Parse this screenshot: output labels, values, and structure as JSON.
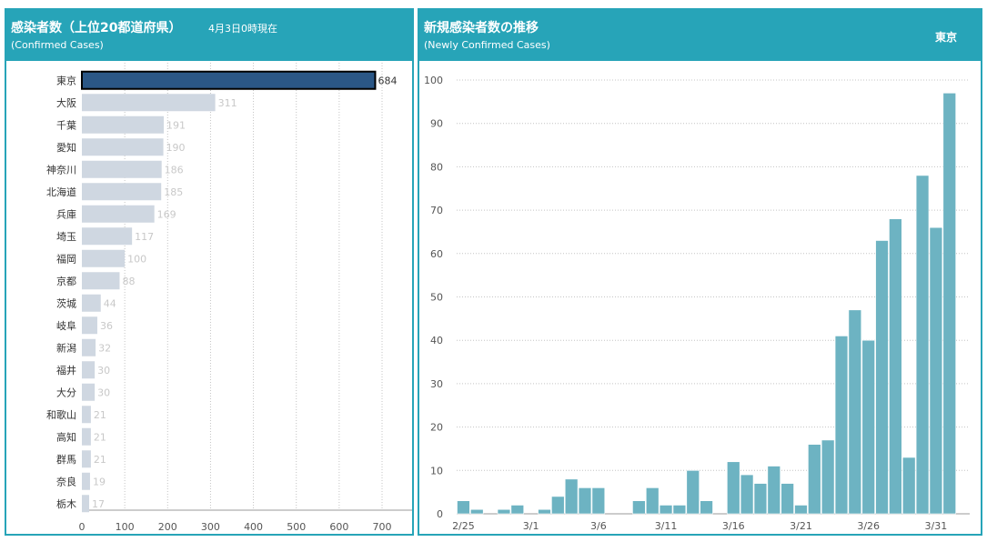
{
  "left_panel": {
    "title": "感染者数（上位20都道府県）",
    "subtitle": "(Confirmed Cases)",
    "date_note": "4月3日0時現在"
  },
  "right_panel": {
    "title": "新規感染者数の推移",
    "subtitle": "(Newly Confirmed Cases)",
    "prefecture": "東京"
  },
  "colors": {
    "header": "#27a4b8",
    "highlight_bar": "#2b5786",
    "bar": "#cfd7e1",
    "daily_bar": "#6db3c2"
  },
  "chart_data": [
    {
      "type": "bar",
      "orientation": "horizontal",
      "categories": [
        "東京",
        "大阪",
        "千葉",
        "愛知",
        "神奈川",
        "北海道",
        "兵庫",
        "埼玉",
        "福岡",
        "京都",
        "茨城",
        "岐阜",
        "新潟",
        "福井",
        "大分",
        "和歌山",
        "高知",
        "群馬",
        "奈良",
        "栃木"
      ],
      "values": [
        684,
        311,
        191,
        190,
        186,
        185,
        169,
        117,
        100,
        88,
        44,
        36,
        32,
        30,
        30,
        21,
        21,
        21,
        19,
        17
      ],
      "highlighted": "東京",
      "xticks": [
        0,
        100,
        200,
        300,
        400,
        500,
        600,
        700
      ],
      "xlim": [
        0,
        770
      ],
      "grid": "vertical dotted"
    },
    {
      "type": "bar",
      "x": [
        "2/25",
        "2/26",
        "2/27",
        "2/28",
        "2/29",
        "3/1",
        "3/2",
        "3/3",
        "3/4",
        "3/5",
        "3/6",
        "3/7",
        "3/8",
        "3/9",
        "3/10",
        "3/11",
        "3/12",
        "3/13",
        "3/14",
        "3/15",
        "3/16",
        "3/17",
        "3/18",
        "3/19",
        "3/20",
        "3/21",
        "3/22",
        "3/23",
        "3/24",
        "3/25",
        "3/26",
        "3/27",
        "3/28",
        "3/29",
        "3/30",
        "3/31",
        "4/1",
        "4/2"
      ],
      "values": [
        3,
        1,
        0,
        1,
        2,
        0,
        1,
        4,
        8,
        6,
        6,
        0,
        0,
        3,
        6,
        2,
        2,
        10,
        3,
        0,
        12,
        9,
        7,
        11,
        7,
        2,
        16,
        17,
        41,
        47,
        40,
        63,
        68,
        13,
        78,
        66,
        97,
        0
      ],
      "xticks": [
        "2/25",
        "3/1",
        "3/6",
        "3/11",
        "3/16",
        "3/21",
        "3/26",
        "3/31"
      ],
      "yticks": [
        0,
        10,
        20,
        30,
        40,
        50,
        60,
        70,
        80,
        90,
        100
      ],
      "ylim": [
        0,
        100
      ],
      "grid": "horizontal dotted"
    }
  ]
}
